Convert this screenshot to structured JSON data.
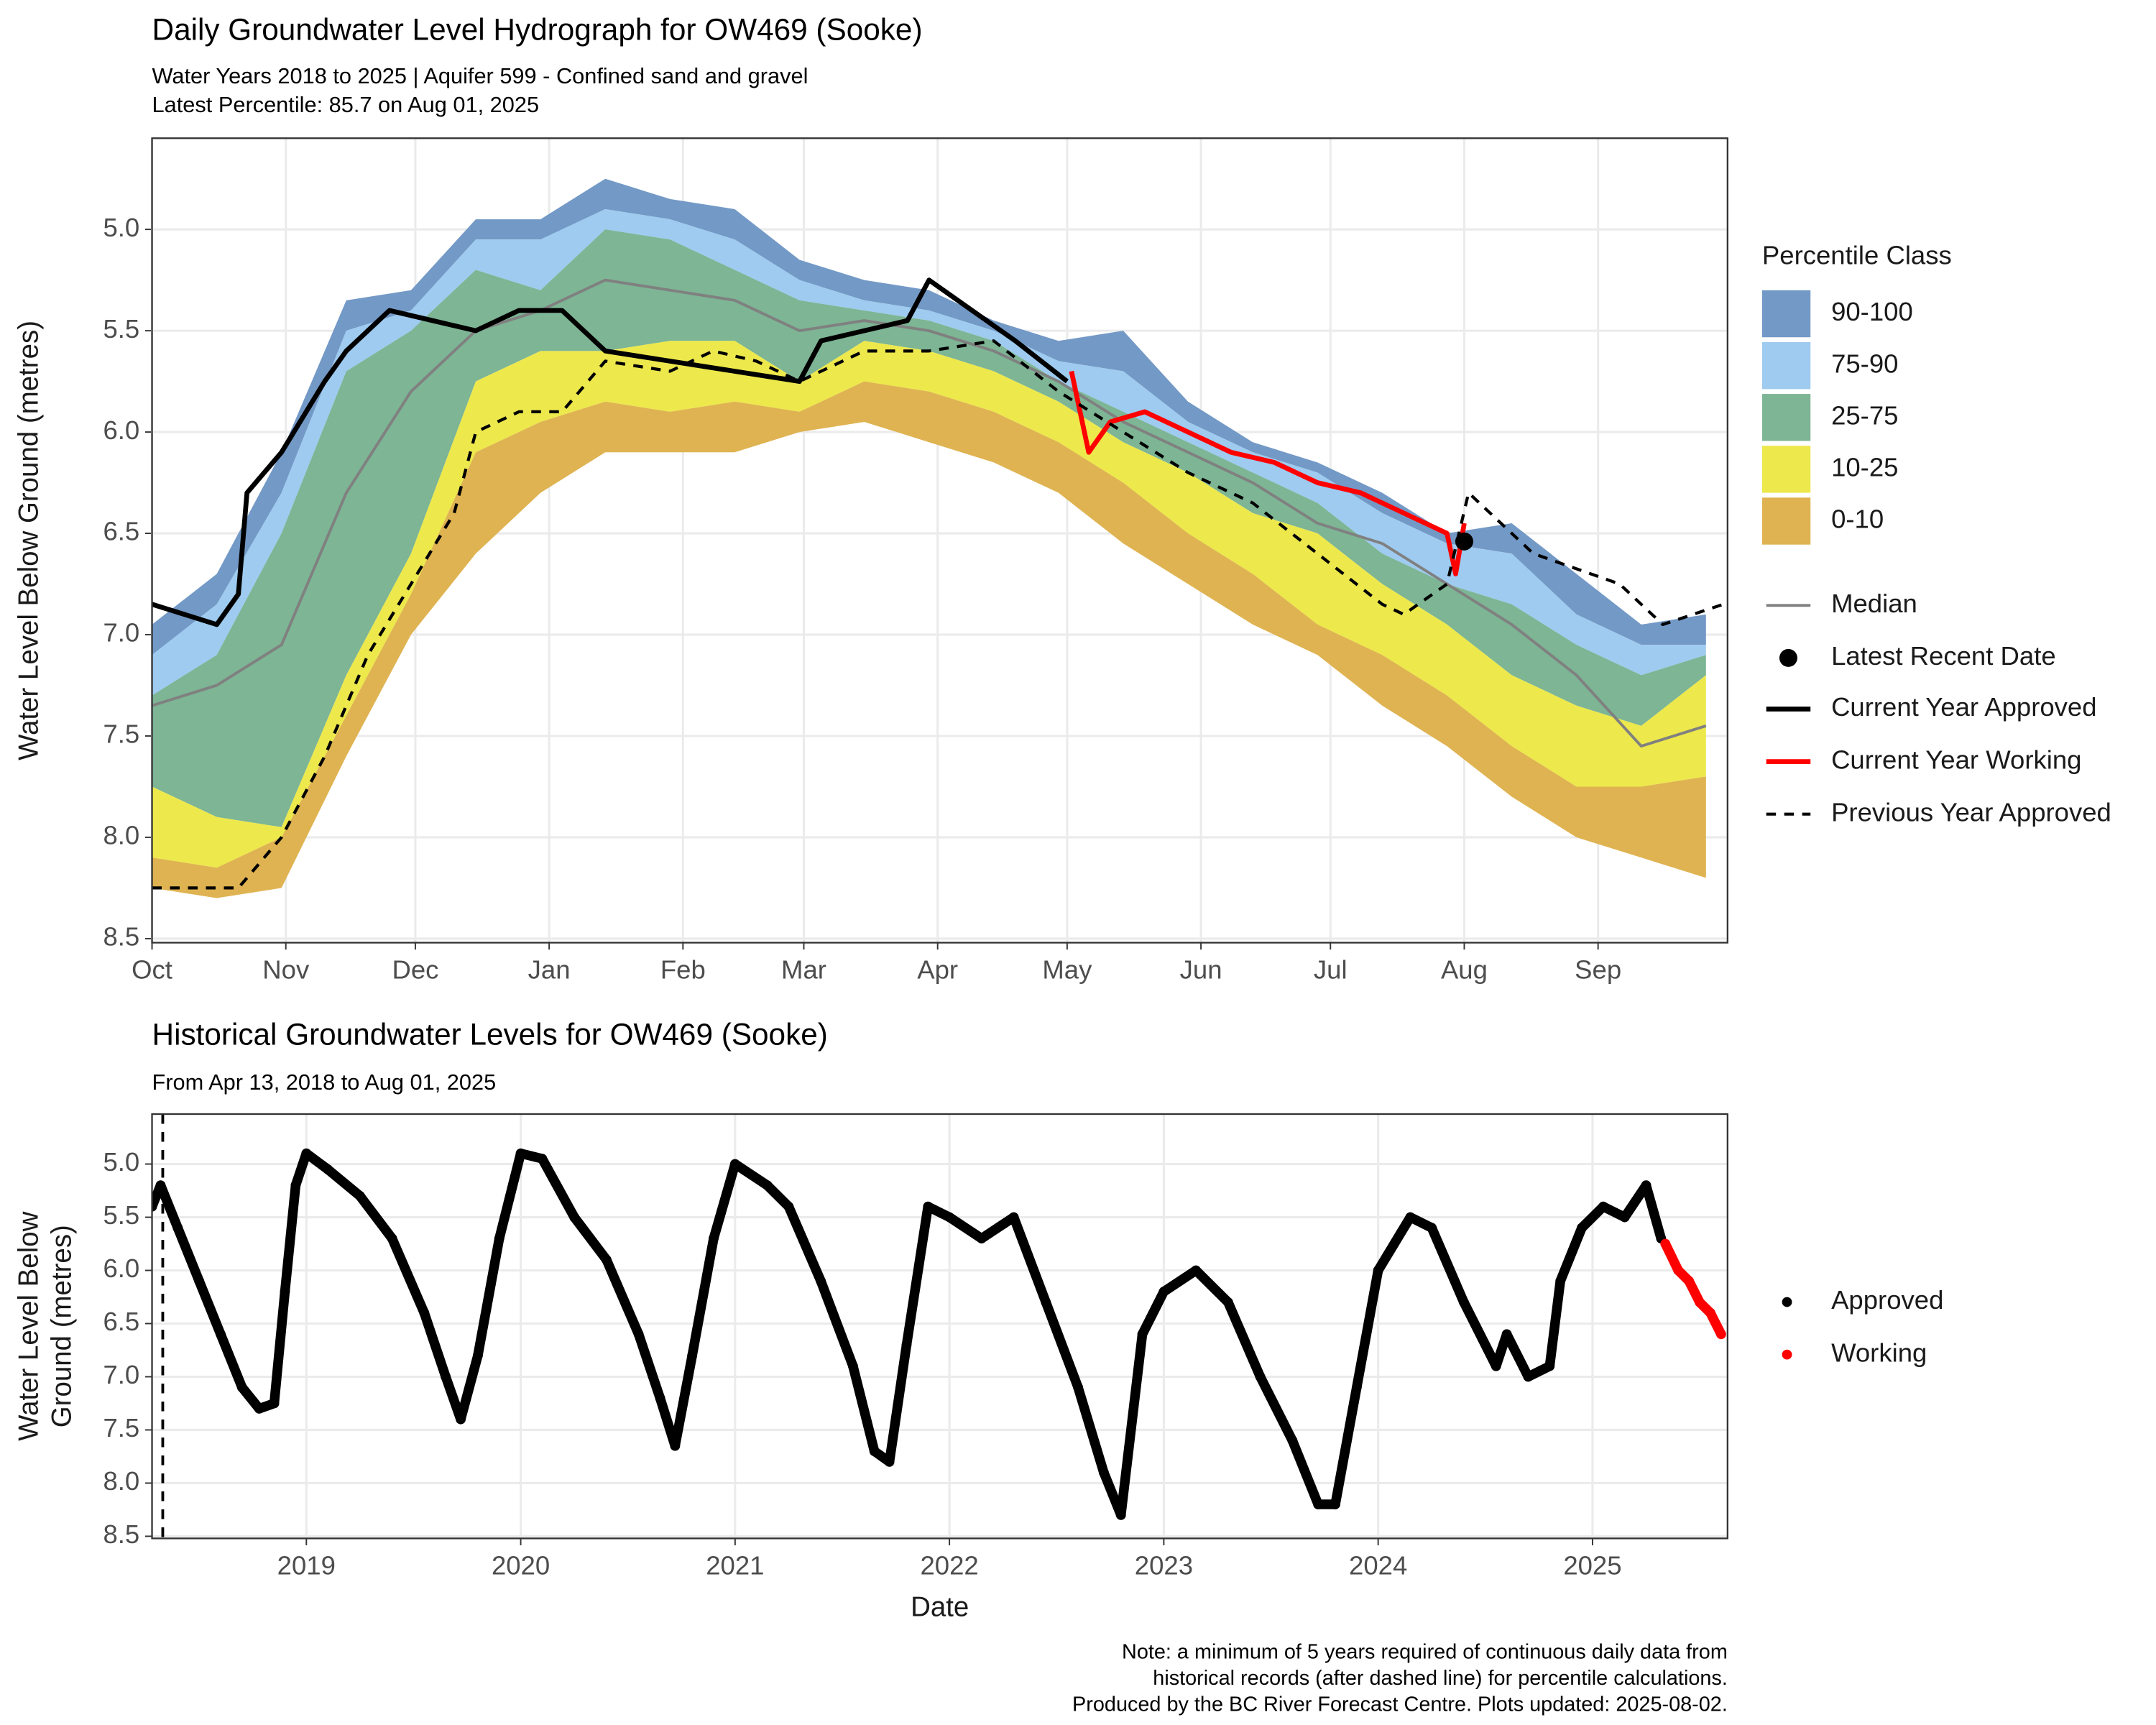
{
  "chart_data": [
    {
      "type": "area",
      "title": "Daily Groundwater Level Hydrograph for OW469 (Sooke)",
      "subtitle": [
        "Water Years 2018 to 2025 | Aquifer 599 - Confined sand and gravel",
        "Latest Percentile: 85.7 on Aug 01, 2025"
      ],
      "ylabel": "Water Level Below Ground (metres)",
      "y_reversed": true,
      "grid": true,
      "legend": "right",
      "legend_title": "Percentile Class",
      "xlim": [
        0,
        365
      ],
      "xticks": [
        {
          "value": 0,
          "label": "Oct"
        },
        {
          "value": 31,
          "label": "Nov"
        },
        {
          "value": 61,
          "label": "Dec"
        },
        {
          "value": 92,
          "label": "Jan"
        },
        {
          "value": 123,
          "label": "Feb"
        },
        {
          "value": 151,
          "label": "Mar"
        },
        {
          "value": 182,
          "label": "Apr"
        },
        {
          "value": 212,
          "label": "May"
        },
        {
          "value": 243,
          "label": "Jun"
        },
        {
          "value": 273,
          "label": "Jul"
        },
        {
          "value": 304,
          "label": "Aug"
        },
        {
          "value": 335,
          "label": "Sep"
        }
      ],
      "ylim": [
        4.55,
        8.52
      ],
      "yticks": [
        {
          "value": 5,
          "label": "5.0"
        },
        5.5,
        {
          "value": 6,
          "label": "6.0"
        },
        6.5,
        {
          "value": 7,
          "label": "7.0"
        },
        7.5,
        {
          "value": 8,
          "label": "8.0"
        },
        8.5
      ],
      "x": [
        0,
        15,
        30,
        45,
        60,
        75,
        90,
        105,
        120,
        135,
        150,
        165,
        180,
        195,
        210,
        225,
        240,
        255,
        270,
        285,
        300,
        315,
        330,
        345,
        360
      ],
      "bands": [
        {
          "name": "90-100",
          "color": "#7399c6",
          "from": [
            6.95,
            6.7,
            6.1,
            5.35,
            5.3,
            4.95,
            4.95,
            4.75,
            4.85,
            4.9,
            5.15,
            5.25,
            5.3,
            5.45,
            5.55,
            5.5,
            5.85,
            6.05,
            6.15,
            6.3,
            6.5,
            6.45,
            6.7,
            6.95,
            6.9
          ],
          "to": [
            7.1,
            6.85,
            6.3,
            5.5,
            5.4,
            5.05,
            5.05,
            4.9,
            4.95,
            5.05,
            5.25,
            5.35,
            5.4,
            5.5,
            5.65,
            5.7,
            5.95,
            6.1,
            6.2,
            6.4,
            6.55,
            6.6,
            6.9,
            7.05,
            7.05
          ]
        },
        {
          "name": "75-90",
          "color": "#9ecbef",
          "from": [
            7.1,
            6.85,
            6.3,
            5.5,
            5.4,
            5.05,
            5.05,
            4.9,
            4.95,
            5.05,
            5.25,
            5.35,
            5.4,
            5.5,
            5.65,
            5.7,
            5.95,
            6.1,
            6.2,
            6.4,
            6.55,
            6.6,
            6.9,
            7.05,
            7.05
          ],
          "to": [
            7.3,
            7.1,
            6.5,
            5.7,
            5.5,
            5.2,
            5.3,
            5.0,
            5.05,
            5.2,
            5.35,
            5.4,
            5.45,
            5.55,
            5.75,
            5.9,
            6.05,
            6.2,
            6.35,
            6.6,
            6.75,
            6.85,
            7.05,
            7.2,
            7.1
          ]
        },
        {
          "name": "25-75",
          "color": "#7db595",
          "from": [
            7.3,
            7.1,
            6.5,
            5.7,
            5.5,
            5.2,
            5.3,
            5.0,
            5.05,
            5.2,
            5.35,
            5.4,
            5.45,
            5.55,
            5.75,
            5.9,
            6.05,
            6.2,
            6.35,
            6.6,
            6.75,
            6.85,
            7.05,
            7.2,
            7.1
          ],
          "to": [
            7.75,
            7.9,
            7.95,
            7.2,
            6.6,
            5.75,
            5.6,
            5.6,
            5.55,
            5.55,
            5.75,
            5.55,
            5.6,
            5.7,
            5.85,
            6.05,
            6.2,
            6.4,
            6.5,
            6.75,
            6.95,
            7.2,
            7.35,
            7.45,
            7.2
          ]
        },
        {
          "name": "10-25",
          "color": "#ede84c",
          "from": [
            7.75,
            7.9,
            7.95,
            7.2,
            6.6,
            5.75,
            5.6,
            5.6,
            5.55,
            5.55,
            5.75,
            5.55,
            5.6,
            5.7,
            5.85,
            6.05,
            6.2,
            6.4,
            6.5,
            6.75,
            6.95,
            7.2,
            7.35,
            7.45,
            7.2
          ],
          "to": [
            8.1,
            8.15,
            8.0,
            7.4,
            6.8,
            6.1,
            5.95,
            5.85,
            5.9,
            5.85,
            5.9,
            5.75,
            5.8,
            5.9,
            6.05,
            6.25,
            6.5,
            6.7,
            6.95,
            7.1,
            7.3,
            7.55,
            7.75,
            7.75,
            7.7
          ]
        },
        {
          "name": "0-10",
          "color": "#dfb351",
          "from": [
            8.1,
            8.15,
            8.0,
            7.4,
            6.8,
            6.1,
            5.95,
            5.85,
            5.9,
            5.85,
            5.9,
            5.75,
            5.8,
            5.9,
            6.05,
            6.25,
            6.5,
            6.7,
            6.95,
            7.1,
            7.3,
            7.55,
            7.75,
            7.75,
            7.7
          ],
          "to": [
            8.25,
            8.3,
            8.25,
            7.6,
            7.0,
            6.6,
            6.3,
            6.1,
            6.1,
            6.1,
            6.0,
            5.95,
            6.05,
            6.15,
            6.3,
            6.55,
            6.75,
            6.95,
            7.1,
            7.35,
            7.55,
            7.8,
            8.0,
            8.1,
            8.2
          ]
        }
      ],
      "lines": [
        {
          "name": "Median",
          "color": "#808080",
          "width": 2,
          "x": [
            0,
            15,
            30,
            45,
            60,
            75,
            90,
            105,
            120,
            135,
            150,
            165,
            180,
            195,
            210,
            225,
            240,
            255,
            270,
            285,
            300,
            315,
            330,
            345,
            360
          ],
          "values": [
            7.35,
            7.25,
            7.05,
            6.3,
            5.8,
            5.5,
            5.4,
            5.25,
            5.3,
            5.35,
            5.5,
            5.45,
            5.5,
            5.6,
            5.75,
            5.95,
            6.1,
            6.25,
            6.45,
            6.55,
            6.75,
            6.95,
            7.2,
            7.55,
            7.45
          ]
        },
        {
          "name": "Current Year Approved",
          "color": "#000000",
          "width": 3.5,
          "x": [
            0,
            15,
            20,
            22,
            30,
            40,
            45,
            55,
            65,
            75,
            85,
            95,
            105,
            120,
            135,
            150,
            155,
            165,
            175,
            180,
            190,
            200,
            212
          ],
          "values": [
            6.85,
            6.95,
            6.8,
            6.3,
            6.1,
            5.75,
            5.6,
            5.4,
            5.45,
            5.5,
            5.4,
            5.4,
            5.6,
            5.65,
            5.7,
            5.75,
            5.55,
            5.5,
            5.45,
            5.25,
            5.4,
            5.55,
            5.75
          ]
        },
        {
          "name": "Current Year Working",
          "color": "#ff0000",
          "width": 3.5,
          "x": [
            213,
            217,
            222,
            230,
            240,
            250,
            260,
            270,
            280,
            290,
            300,
            302,
            304
          ],
          "values": [
            5.7,
            6.1,
            5.95,
            5.9,
            6.0,
            6.1,
            6.15,
            6.25,
            6.3,
            6.4,
            6.5,
            6.7,
            6.45
          ]
        },
        {
          "name": "Previous Year Approved",
          "color": "#000000",
          "width": 2.2,
          "dash": "7,6",
          "x": [
            0,
            20,
            30,
            40,
            50,
            60,
            70,
            75,
            85,
            95,
            105,
            120,
            130,
            140,
            150,
            165,
            180,
            195,
            210,
            225,
            240,
            255,
            270,
            285,
            290,
            300,
            305,
            320,
            340,
            350,
            364
          ],
          "values": [
            8.25,
            8.25,
            8.0,
            7.6,
            7.1,
            6.75,
            6.4,
            6.0,
            5.9,
            5.9,
            5.65,
            5.7,
            5.6,
            5.65,
            5.75,
            5.6,
            5.6,
            5.55,
            5.8,
            6.0,
            6.2,
            6.35,
            6.6,
            6.85,
            6.9,
            6.75,
            6.3,
            6.6,
            6.75,
            6.95,
            6.85
          ]
        }
      ],
      "point": {
        "name": "Latest Recent Date",
        "color": "#000000",
        "x": 304,
        "value": 6.54
      }
    },
    {
      "type": "scatter",
      "title": "Historical Groundwater Levels for OW469 (Sooke)",
      "subtitle": "From Apr 13, 2018 to Aug 01, 2025",
      "ylabel": [
        "Water Level Below",
        "Ground (metres)"
      ],
      "xlabel": "Date",
      "y_reversed": true,
      "grid": true,
      "legend": "right",
      "xlim": [
        2018.28,
        2025.63
      ],
      "xticks": [
        2019,
        2020,
        2021,
        2022,
        2023,
        2024,
        2025
      ],
      "ylim": [
        4.53,
        8.52
      ],
      "yticks": [
        {
          "value": 5,
          "label": "5.0"
        },
        5.5,
        {
          "value": 6,
          "label": "6.0"
        },
        6.5,
        {
          "value": 7,
          "label": "7.0"
        },
        7.5,
        {
          "value": 8,
          "label": "8.0"
        },
        8.5
      ],
      "cutoff_x": 2018.33,
      "series": [
        {
          "name": "Approved",
          "color": "#000000",
          "x": [
            2018.28,
            2018.32,
            2018.4,
            2018.5,
            2018.6,
            2018.7,
            2018.78,
            2018.85,
            2018.9,
            2018.95,
            2019.0,
            2019.1,
            2019.25,
            2019.4,
            2019.55,
            2019.65,
            2019.72,
            2019.8,
            2019.9,
            2020.0,
            2020.1,
            2020.25,
            2020.4,
            2020.55,
            2020.65,
            2020.72,
            2020.8,
            2020.9,
            2021.0,
            2021.15,
            2021.25,
            2021.4,
            2021.55,
            2021.65,
            2021.72,
            2021.8,
            2021.9,
            2022.0,
            2022.15,
            2022.3,
            2022.45,
            2022.6,
            2022.72,
            2022.8,
            2022.9,
            2023.0,
            2023.15,
            2023.3,
            2023.45,
            2023.6,
            2023.72,
            2023.8,
            2023.9,
            2024.0,
            2024.15,
            2024.25,
            2024.4,
            2024.55,
            2024.6,
            2024.7,
            2024.8,
            2024.85,
            2024.95,
            2025.05,
            2025.15,
            2025.25,
            2025.32
          ],
          "values": [
            5.4,
            5.2,
            5.6,
            6.1,
            6.6,
            7.1,
            7.3,
            7.25,
            6.2,
            5.2,
            4.9,
            5.05,
            5.3,
            5.7,
            6.4,
            7.0,
            7.4,
            6.8,
            5.7,
            4.9,
            4.95,
            5.5,
            5.9,
            6.6,
            7.2,
            7.65,
            6.8,
            5.7,
            5.0,
            5.2,
            5.4,
            6.1,
            6.9,
            7.7,
            7.8,
            6.7,
            5.4,
            5.5,
            5.7,
            5.5,
            6.3,
            7.1,
            7.9,
            8.3,
            6.6,
            6.2,
            6.0,
            6.3,
            7.0,
            7.6,
            8.2,
            8.2,
            7.1,
            6.0,
            5.5,
            5.6,
            6.3,
            6.9,
            6.6,
            7.0,
            6.9,
            6.1,
            5.6,
            5.4,
            5.5,
            5.2,
            5.7
          ]
        },
        {
          "name": "Working",
          "color": "#ff0000",
          "x": [
            2025.34,
            2025.4,
            2025.45,
            2025.5,
            2025.55,
            2025.6
          ],
          "values": [
            5.75,
            6.0,
            6.1,
            6.3,
            6.4,
            6.6
          ]
        }
      ]
    }
  ],
  "note": [
    "Note: a minimum of 5 years required of continuous daily data from",
    "historical records (after dashed line) for percentile calculations.",
    "Produced by the BC River Forecast Centre. Plots updated: 2025-08-02."
  ]
}
